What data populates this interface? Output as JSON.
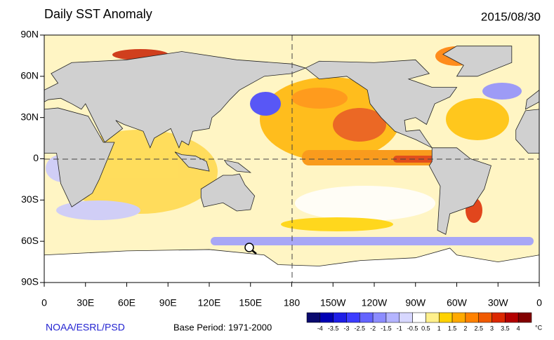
{
  "header": {
    "title": "Daily SST Anomaly",
    "date": "2015/08/30"
  },
  "map": {
    "lat_labels": [
      "90N",
      "60N",
      "30N",
      "0",
      "30S",
      "60S",
      "90S"
    ],
    "lon_labels": [
      "0",
      "30E",
      "60E",
      "90E",
      "120E",
      "150E",
      "180",
      "150W",
      "120W",
      "90W",
      "60W",
      "30W",
      "0"
    ]
  },
  "footer": {
    "source": "NOAA/ESRL/PSD",
    "base_period": "Base Period: 1971-2000"
  },
  "colorbar": {
    "labels": [
      "-4",
      "-3.5",
      "-3",
      "-2.5",
      "-2",
      "-1.5",
      "-1",
      "-0.5",
      "0.5",
      "1",
      "1.5",
      "2",
      "2.5",
      "3",
      "3.5",
      "4"
    ],
    "unit": "°C",
    "colors": [
      "#0a0a6e",
      "#0000b4",
      "#1e1ee6",
      "#3c3cff",
      "#6464ff",
      "#8c8cff",
      "#b4b4ff",
      "#d7d7ff",
      "#ffffff",
      "#fff08c",
      "#ffd200",
      "#ffaa00",
      "#ff8200",
      "#f05a00",
      "#dc2800",
      "#b40000",
      "#820000"
    ]
  }
}
